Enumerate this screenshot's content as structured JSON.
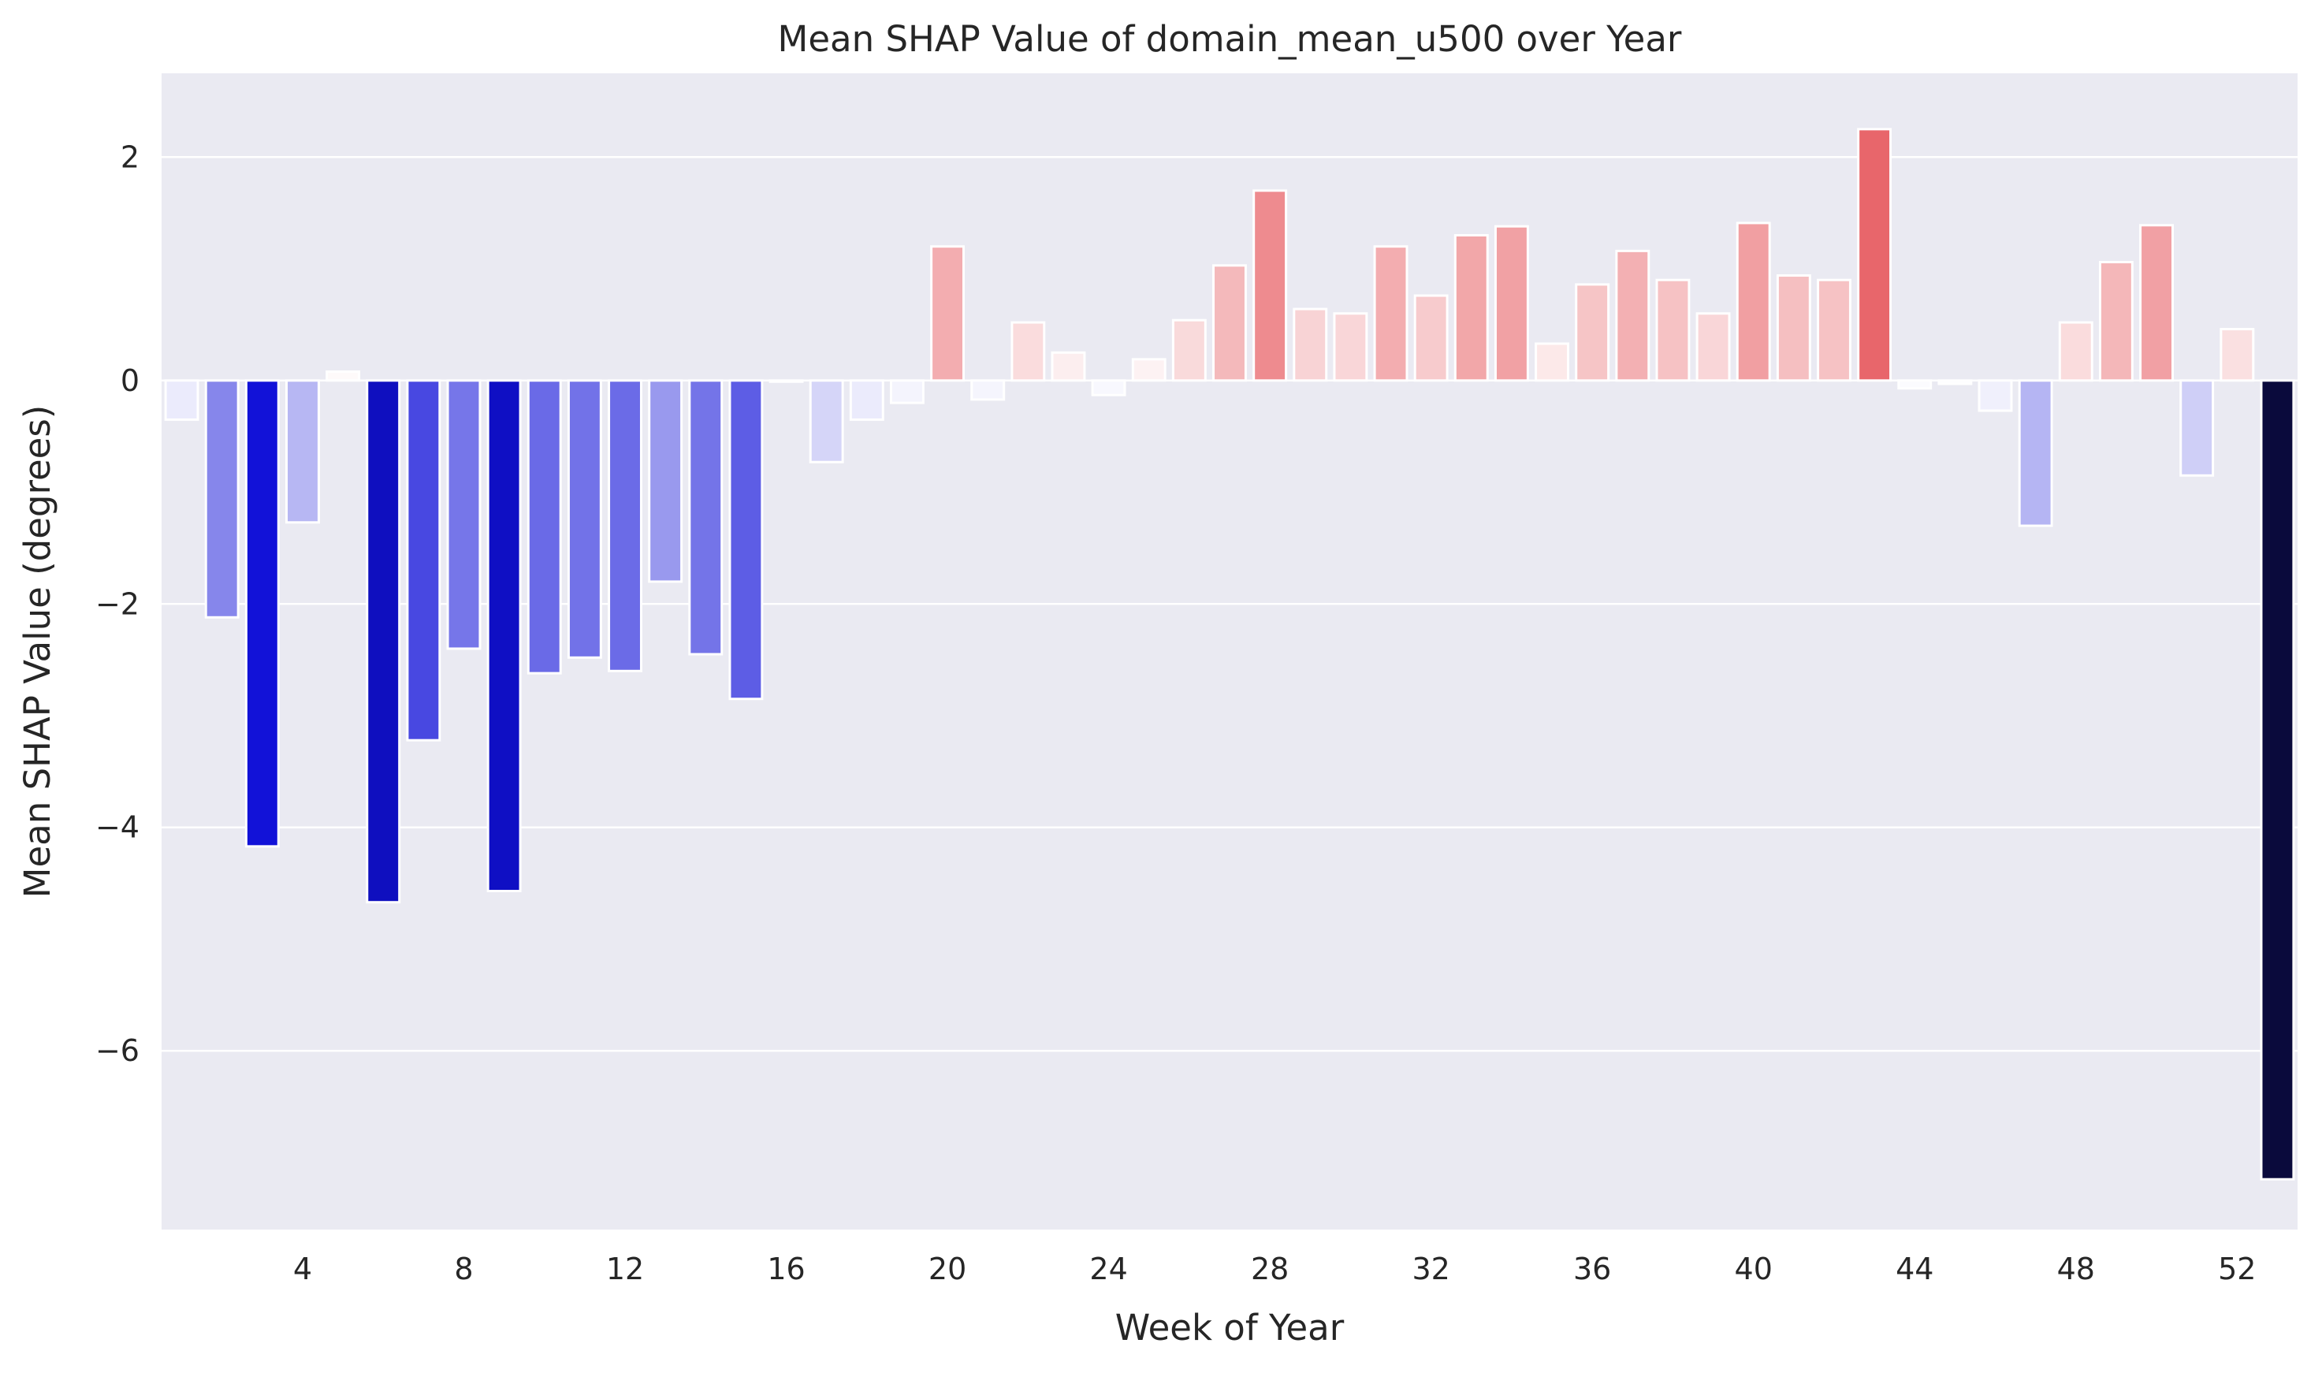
{
  "chart_data": {
    "type": "bar",
    "title": "Mean SHAP Value of domain_mean_u500 over Year",
    "xlabel": "Week of Year",
    "ylabel": "Mean SHAP Value (degrees)",
    "ylim": [
      -7.6,
      2.75
    ],
    "yticks": [
      2,
      0,
      -2,
      -4,
      -6
    ],
    "ytick_labels": [
      "2",
      "0",
      "−2",
      "−4",
      "−6"
    ],
    "xticks": [
      4,
      8,
      12,
      16,
      20,
      24,
      28,
      32,
      36,
      40,
      44,
      48,
      52
    ],
    "grid": true,
    "colors": {
      "background": "#eaeaf2",
      "grid": "#ffffff",
      "negative_max": "#0a0a3c",
      "negative_mid": "#1010d8",
      "positive_max": "#e8666b",
      "neutral": "#ffffff"
    },
    "categories": [
      1,
      2,
      3,
      4,
      5,
      6,
      7,
      8,
      9,
      10,
      11,
      12,
      13,
      14,
      15,
      16,
      17,
      18,
      19,
      20,
      21,
      22,
      23,
      24,
      25,
      26,
      27,
      28,
      29,
      30,
      31,
      32,
      33,
      34,
      35,
      36,
      37,
      38,
      39,
      40,
      41,
      42,
      43,
      44,
      45,
      46,
      47,
      48,
      49,
      50,
      51,
      52,
      53
    ],
    "values": [
      -0.35,
      -2.12,
      -4.17,
      -1.27,
      0.08,
      -4.67,
      -3.22,
      -2.4,
      -4.57,
      -2.62,
      -2.48,
      -2.6,
      -1.8,
      -2.45,
      -2.85,
      0.0,
      -0.73,
      -0.35,
      -0.2,
      1.2,
      -0.17,
      0.52,
      0.25,
      -0.13,
      0.19,
      0.54,
      1.03,
      1.7,
      0.64,
      0.6,
      1.2,
      0.76,
      1.3,
      1.38,
      0.33,
      0.86,
      1.16,
      0.9,
      0.6,
      1.41,
      0.94,
      0.9,
      2.25,
      -0.07,
      -0.03,
      -0.27,
      -1.3,
      0.52,
      1.06,
      1.39,
      -0.85,
      0.46,
      -7.15
    ]
  }
}
